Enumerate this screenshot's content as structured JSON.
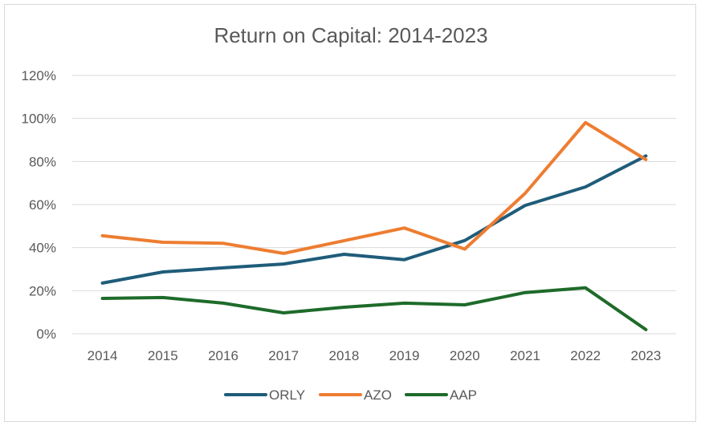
{
  "chart_data": {
    "type": "line",
    "title": "Return on Capital: 2014-2023",
    "xlabel": "",
    "ylabel": "",
    "categories": [
      "2014",
      "2015",
      "2016",
      "2017",
      "2018",
      "2019",
      "2020",
      "2021",
      "2022",
      "2023"
    ],
    "ylim": [
      0,
      120
    ],
    "y_ticks": [
      0,
      20,
      40,
      60,
      80,
      100,
      120
    ],
    "y_tick_labels": [
      "0%",
      "20%",
      "40%",
      "60%",
      "80%",
      "100%",
      "120%"
    ],
    "grid": true,
    "legend_position": "bottom",
    "series": [
      {
        "name": "ORLY",
        "color": "#1f5c7a",
        "values": [
          23.5,
          28.7,
          30.6,
          32.4,
          36.9,
          34.4,
          43.3,
          59.6,
          68.2,
          82.6
        ]
      },
      {
        "name": "AZO",
        "color": "#ed7d31",
        "values": [
          45.5,
          42.5,
          42.0,
          37.3,
          43.2,
          49.1,
          39.3,
          65.2,
          98.1,
          80.9
        ]
      },
      {
        "name": "AAP",
        "color": "#1e6b2a",
        "values": [
          16.4,
          16.8,
          14.2,
          9.7,
          12.3,
          14.2,
          13.4,
          19.1,
          21.3,
          1.9
        ]
      }
    ]
  }
}
